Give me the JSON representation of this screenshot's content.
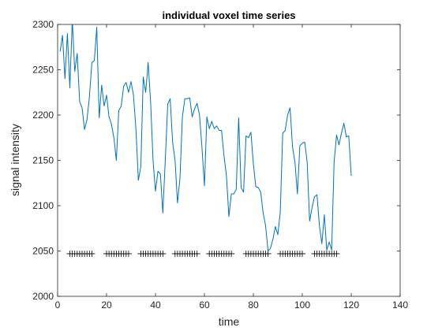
{
  "chart_data": {
    "type": "line",
    "title": "individual voxel time series",
    "xlabel": "time",
    "ylabel": "signal intensity",
    "xlim": [
      0,
      140
    ],
    "ylim": [
      2000,
      2300
    ],
    "xticks": [
      0,
      20,
      40,
      60,
      80,
      100,
      120,
      140
    ],
    "yticks": [
      2000,
      2050,
      2100,
      2150,
      2200,
      2250,
      2300
    ],
    "grid": false,
    "colors": {
      "line": "#0072BD",
      "marker": "#000000",
      "axes": "#262626"
    },
    "series": [
      {
        "values": [
          2270,
          2288,
          2240,
          2290,
          2230,
          2305,
          2248,
          2268,
          2215,
          2208,
          2184,
          2195,
          2220,
          2258,
          2260,
          2297,
          2197,
          2233,
          2210,
          2222,
          2198,
          2190,
          2175,
          2150,
          2205,
          2210,
          2232,
          2236,
          2225,
          2237,
          2222,
          2185,
          2128,
          2143,
          2242,
          2225,
          2258,
          2215,
          2150,
          2116,
          2138,
          2135,
          2092,
          2150,
          2212,
          2218,
          2170,
          2150,
          2103,
          2130,
          2198,
          2218,
          2218,
          2219,
          2198,
          2207,
          2213,
          2200,
          2164,
          2122,
          2198,
          2185,
          2193,
          2185,
          2188,
          2183,
          2183,
          2155,
          2133,
          2088,
          2113,
          2113,
          2118,
          2197,
          2120,
          2115,
          2177,
          2175,
          2181,
          2146,
          2121,
          2120,
          2115,
          2092,
          2078,
          2050,
          2053,
          2063,
          2077,
          2068,
          2093,
          2180,
          2183,
          2200,
          2208,
          2165,
          2148,
          2113,
          2166,
          2169,
          2170,
          2148,
          2083,
          2098,
          2110,
          2112,
          2078,
          2058,
          2090,
          2051,
          2060,
          2051,
          2148,
          2178,
          2167,
          2180,
          2191,
          2176,
          2177,
          2133
        ]
      }
    ],
    "markers": {
      "symbol": "+",
      "y": 2047,
      "x": [
        5,
        6,
        7,
        8,
        9,
        10,
        11,
        12,
        13,
        14,
        20,
        21,
        22,
        23,
        24,
        25,
        26,
        27,
        28,
        29,
        34,
        35,
        36,
        37,
        38,
        39,
        40,
        41,
        42,
        43,
        48,
        49,
        50,
        51,
        52,
        53,
        54,
        55,
        56,
        57,
        62,
        63,
        64,
        65,
        66,
        67,
        68,
        69,
        70,
        71,
        77,
        78,
        79,
        80,
        81,
        82,
        83,
        84,
        85,
        86,
        91,
        92,
        93,
        94,
        95,
        96,
        97,
        98,
        99,
        100,
        105,
        106,
        107,
        108,
        109,
        110,
        111,
        112,
        113,
        114
      ]
    }
  }
}
